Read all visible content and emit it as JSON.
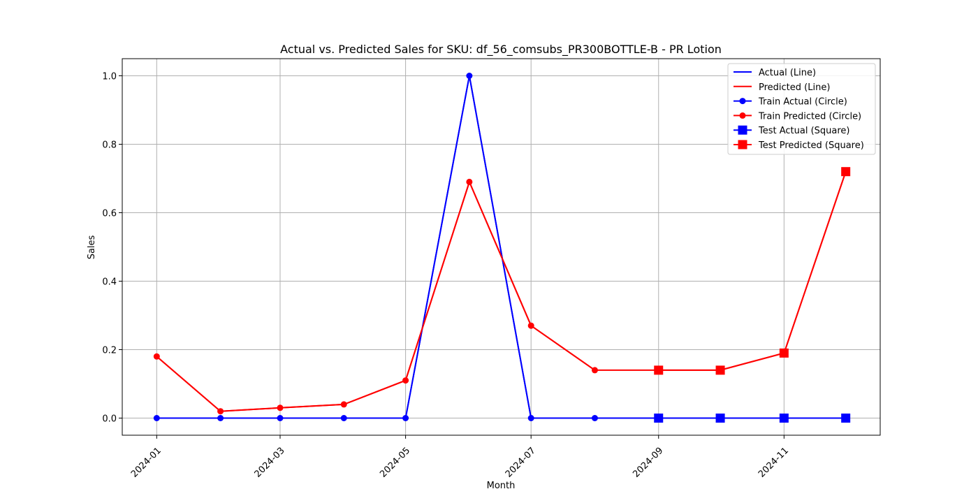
{
  "chart_data": {
    "type": "line",
    "title": "Actual vs. Predicted Sales for SKU: df_56_comsubs_PR300BOTTLE-B - PR Lotion",
    "xlabel": "Month",
    "ylabel": "Sales",
    "x": [
      "2024-01",
      "2024-02",
      "2024-03",
      "2024-04",
      "2024-05",
      "2024-06",
      "2024-07",
      "2024-08",
      "2024-09",
      "2024-10",
      "2024-11",
      "2024-12"
    ],
    "x_tick_labels": [
      "2024-01",
      "2024-03",
      "2024-05",
      "2024-07",
      "2024-09",
      "2024-11"
    ],
    "y_tick_labels": [
      "0.0",
      "0.2",
      "0.4",
      "0.6",
      "0.8",
      "1.0"
    ],
    "ylim": [
      -0.05,
      1.05
    ],
    "grid": true,
    "legend_position": "top-right",
    "series": [
      {
        "name": "Actual (Line)",
        "color": "#0000ff",
        "marker": "none",
        "x": [
          "2024-01",
          "2024-02",
          "2024-03",
          "2024-04",
          "2024-05",
          "2024-06",
          "2024-07",
          "2024-08",
          "2024-09",
          "2024-10",
          "2024-11",
          "2024-12"
        ],
        "values": [
          0,
          0,
          0,
          0,
          0,
          1.0,
          0,
          0,
          0,
          0,
          0,
          0
        ]
      },
      {
        "name": "Predicted (Line)",
        "color": "#ff0000",
        "marker": "none",
        "x": [
          "2024-01",
          "2024-02",
          "2024-03",
          "2024-04",
          "2024-05",
          "2024-06",
          "2024-07",
          "2024-08",
          "2024-09",
          "2024-10",
          "2024-11",
          "2024-12"
        ],
        "values": [
          0.18,
          0.02,
          0.03,
          0.04,
          0.11,
          0.69,
          0.27,
          0.14,
          0.14,
          0.14,
          0.19,
          0.72
        ]
      },
      {
        "name": "Train Actual (Circle)",
        "color": "#0000ff",
        "marker": "circle",
        "x": [
          "2024-01",
          "2024-02",
          "2024-03",
          "2024-04",
          "2024-05",
          "2024-06",
          "2024-07",
          "2024-08"
        ],
        "values": [
          0,
          0,
          0,
          0,
          0,
          1.0,
          0,
          0
        ]
      },
      {
        "name": "Train Predicted (Circle)",
        "color": "#ff0000",
        "marker": "circle",
        "x": [
          "2024-01",
          "2024-02",
          "2024-03",
          "2024-04",
          "2024-05",
          "2024-06",
          "2024-07",
          "2024-08"
        ],
        "values": [
          0.18,
          0.02,
          0.03,
          0.04,
          0.11,
          0.69,
          0.27,
          0.14
        ]
      },
      {
        "name": "Test Actual (Square)",
        "color": "#0000ff",
        "marker": "square",
        "x": [
          "2024-09",
          "2024-10",
          "2024-11",
          "2024-12"
        ],
        "values": [
          0,
          0,
          0,
          0
        ]
      },
      {
        "name": "Test Predicted (Square)",
        "color": "#ff0000",
        "marker": "square",
        "x": [
          "2024-09",
          "2024-10",
          "2024-11",
          "2024-12"
        ],
        "values": [
          0.14,
          0.14,
          0.19,
          0.72
        ]
      }
    ]
  }
}
